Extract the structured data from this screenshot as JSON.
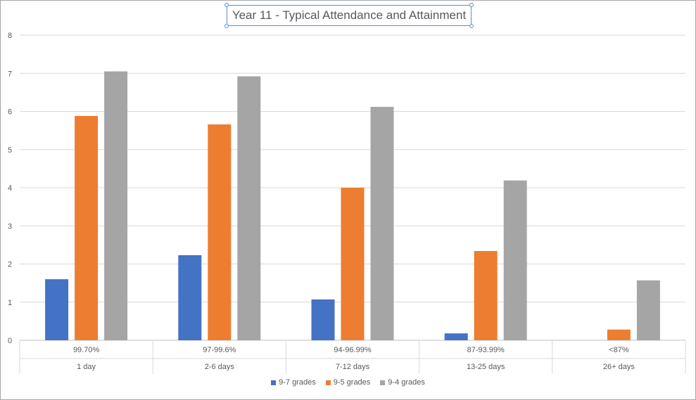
{
  "chart_data": {
    "type": "bar",
    "title": "Year 11 - Typical Attendance and Attainment",
    "xlabel": "",
    "ylabel": "",
    "ylim": [
      0,
      8
    ],
    "yticks": [
      0,
      1,
      2,
      3,
      4,
      5,
      6,
      7,
      8
    ],
    "grid": true,
    "legend_position": "bottom",
    "categories": [
      [
        "99.70%",
        "1 day"
      ],
      [
        "97-99.6%",
        "2-6 days"
      ],
      [
        "94-96.99%",
        "7-12 days"
      ],
      [
        "87-93.99%",
        "13-25 days"
      ],
      [
        "<87%",
        "26+ days"
      ]
    ],
    "series": [
      {
        "name": "9-7 grades",
        "color": "#4472c4",
        "values": [
          1.6,
          2.23,
          1.07,
          0.18,
          0
        ]
      },
      {
        "name": "9-5 grades",
        "color": "#ed7d31",
        "values": [
          5.88,
          5.66,
          4.0,
          2.34,
          0.28
        ]
      },
      {
        "name": "9-4 grades",
        "color": "#a5a5a5",
        "values": [
          7.05,
          6.92,
          6.12,
          4.19,
          1.57
        ]
      }
    ]
  }
}
